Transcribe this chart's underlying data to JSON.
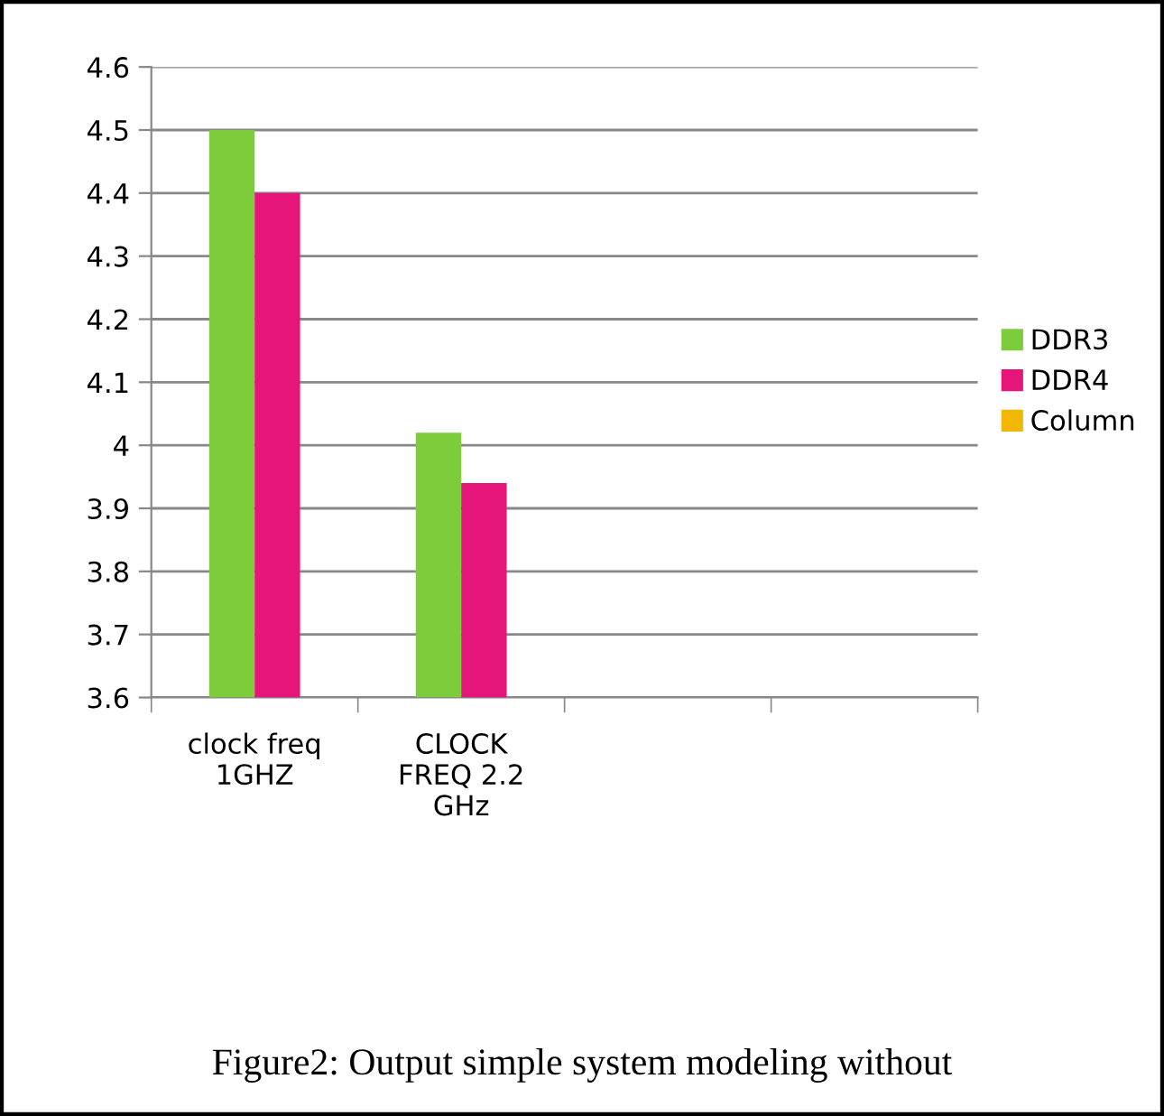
{
  "chart_data": {
    "type": "bar",
    "categories": [
      "clock freq\n1GHZ",
      "CLOCK\nFREQ 2.2\nGHz",
      null,
      null
    ],
    "series": [
      {
        "name": "DDR3",
        "color": "#7dcc3c",
        "values": [
          4.5,
          4.02,
          null,
          null
        ]
      },
      {
        "name": "DDR4",
        "color": "#e5157a",
        "values": [
          4.4,
          3.94,
          null,
          null
        ]
      },
      {
        "name": "Column",
        "color": "#f2b705",
        "values": [
          null,
          null,
          null,
          null
        ]
      }
    ],
    "ylim": [
      3.6,
      4.6
    ],
    "yticks": [
      3.6,
      3.7,
      3.8,
      3.9,
      4,
      4.1,
      4.2,
      4.3,
      4.4,
      4.5,
      4.6
    ],
    "grid": "y",
    "legend": "right",
    "annotations": [
      "Figure2: Output simple system modeling without"
    ]
  }
}
